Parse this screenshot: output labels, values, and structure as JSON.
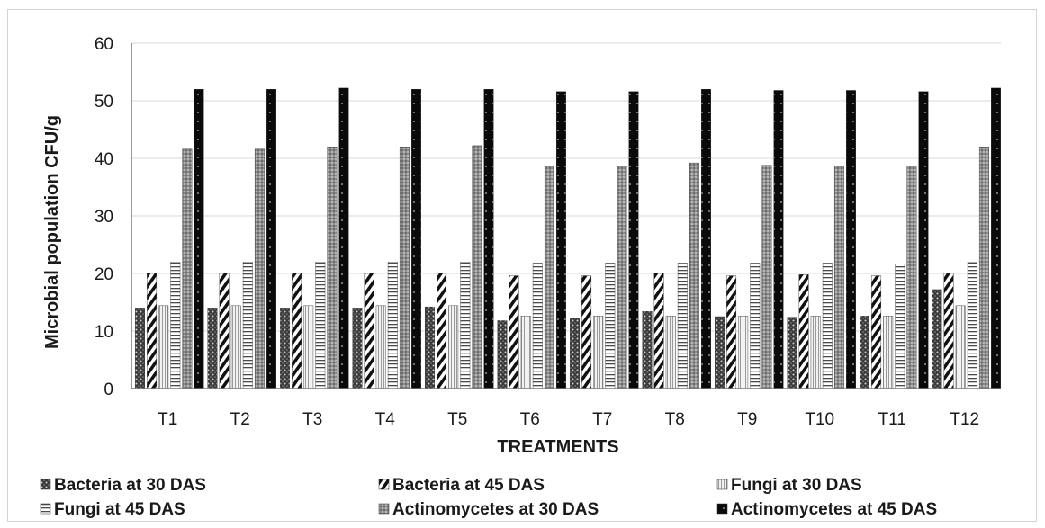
{
  "chart_data": {
    "type": "bar",
    "title": "",
    "xlabel": "TREATMENTS",
    "ylabel": "Microbial population CFU/g",
    "ylim": [
      0,
      60
    ],
    "yticks": [
      0,
      10,
      20,
      30,
      40,
      50,
      60
    ],
    "grid": true,
    "legend_position": "bottom",
    "categories": [
      "T1",
      "T2",
      "T3",
      "T4",
      "T5",
      "T6",
      "T7",
      "T8",
      "T9",
      "T10",
      "T11",
      "T12"
    ],
    "series": [
      {
        "name": "Bacteria at 30 DAS",
        "pattern": "dots",
        "values": [
          14,
          14,
          14,
          14,
          14.2,
          11.8,
          12.2,
          13.4,
          12.5,
          12.4,
          12.6,
          17.2
        ]
      },
      {
        "name": "Bacteria at 45 DAS",
        "pattern": "diagonal",
        "values": [
          20,
          20,
          20,
          20,
          20,
          19.6,
          19.6,
          20,
          19.6,
          19.8,
          19.6,
          20
        ]
      },
      {
        "name": "Fungi at 30 DAS",
        "pattern": "vertical",
        "values": [
          14.4,
          14.4,
          14.4,
          14.4,
          14.4,
          12.6,
          12.6,
          12.6,
          12.6,
          12.6,
          12.6,
          14.4
        ]
      },
      {
        "name": "Fungi at 45 DAS",
        "pattern": "horizontal",
        "values": [
          22,
          22,
          22,
          22,
          22,
          21.8,
          21.8,
          21.8,
          21.8,
          21.8,
          21.6,
          22
        ]
      },
      {
        "name": "Actinomycetes at 30 DAS",
        "pattern": "gray",
        "values": [
          41.6,
          41.6,
          42,
          42,
          42.2,
          38.6,
          38.6,
          39.2,
          38.8,
          38.6,
          38.6,
          42
        ]
      },
      {
        "name": "Actinomycetes at 45 DAS",
        "pattern": "black",
        "values": [
          52,
          52,
          52.2,
          52,
          52,
          51.6,
          51.6,
          52,
          51.8,
          51.8,
          51.6,
          52.2
        ]
      }
    ]
  },
  "colors": {
    "axis": "#7a7a7a",
    "grid": "#d9d9d9",
    "text": "#1a1a1a"
  }
}
